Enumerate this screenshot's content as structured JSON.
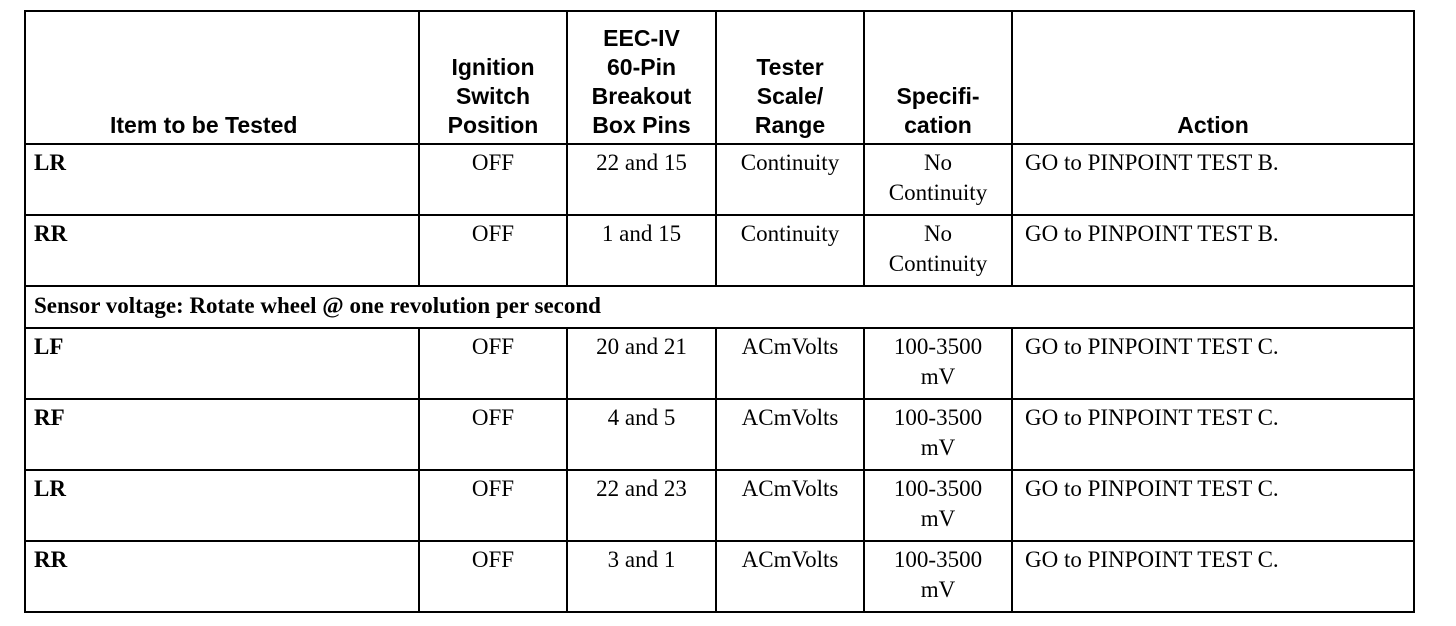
{
  "headers": {
    "item": "Item to be Tested",
    "ignition": [
      "Ignition",
      "Switch",
      "Position"
    ],
    "pins": [
      "EEC-IV",
      "60-Pin",
      "Breakout",
      "Box Pins"
    ],
    "scale": [
      "Tester",
      "Scale/",
      "Range"
    ],
    "spec": [
      "Specifi-",
      "cation"
    ],
    "action": "Action"
  },
  "rows_group1": [
    {
      "item": "LR",
      "ignition": "OFF",
      "pins": "22 and 15",
      "scale": "Continuity",
      "spec": [
        "No",
        "Continuity"
      ],
      "action": "GO to  PINPOINT TEST B."
    },
    {
      "item": "RR",
      "ignition": "OFF",
      "pins": "1 and 15",
      "scale": "Continuity",
      "spec": [
        "No",
        "Continuity"
      ],
      "action": "GO to  PINPOINT TEST B."
    }
  ],
  "section_label": "Sensor voltage: Rotate wheel @ one revolution per second",
  "rows_group2": [
    {
      "item": "LF",
      "ignition": "OFF",
      "pins": "20 and 21",
      "scale": "ACmVolts",
      "spec": [
        "100-3500",
        "mV"
      ],
      "action": "GO to  PINPOINT TEST C."
    },
    {
      "item": "RF",
      "ignition": "OFF",
      "pins": "4 and 5",
      "scale": "ACmVolts",
      "spec": [
        "100-3500",
        "mV"
      ],
      "action": "GO to  PINPOINT TEST C."
    },
    {
      "item": "LR",
      "ignition": "OFF",
      "pins": "22 and 23",
      "scale": "ACmVolts",
      "spec": [
        "100-3500",
        "mV"
      ],
      "action": "GO to  PINPOINT TEST C."
    },
    {
      "item": "RR",
      "ignition": "OFF",
      "pins": "3 and 1",
      "scale": "ACmVolts",
      "spec": [
        "100-3500",
        "mV"
      ],
      "action": "GO to  PINPOINT TEST C."
    }
  ]
}
